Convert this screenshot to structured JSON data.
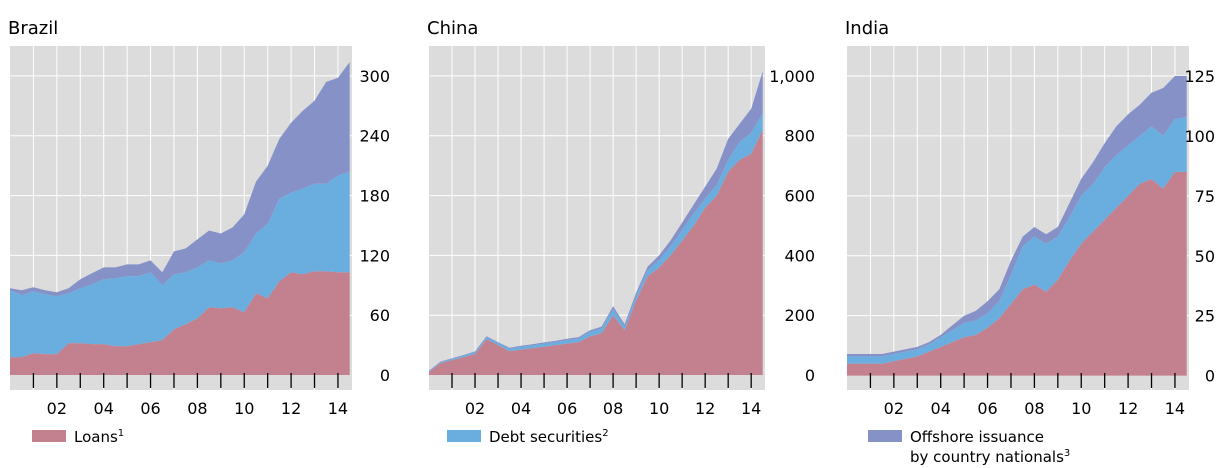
{
  "colors": {
    "panel_bg": "#dcdcdc",
    "grid": "#ffffff",
    "loans": "#c3808e",
    "debt_securities": "#6aaee0",
    "offshore": "#8691c8"
  },
  "legend": {
    "loans": {
      "label": "Loans",
      "sup": "1"
    },
    "debt_securities": {
      "label": "Debt securities",
      "sup": "2"
    },
    "offshore": {
      "label_line1": "Offshore issuance",
      "label_line2": "by country nationals",
      "sup": "3"
    }
  },
  "chart_data": [
    {
      "type": "area",
      "stacked": true,
      "title": "Brazil",
      "xlim": [
        2000.0,
        2014.6
      ],
      "ylim": [
        -15,
        330
      ],
      "grid": true,
      "y_axis_side": "right",
      "x_ticks": [
        2002,
        2004,
        2006,
        2008,
        2010,
        2012,
        2014
      ],
      "x_tick_labels": [
        "02",
        "04",
        "06",
        "08",
        "10",
        "12",
        "14"
      ],
      "y_ticks": [
        0,
        60,
        120,
        180,
        240,
        300
      ],
      "y_tick_labels": [
        "0",
        "60",
        "120",
        "180",
        "240",
        "300"
      ],
      "x": [
        2000.0,
        2000.5,
        2001.0,
        2001.5,
        2002.0,
        2002.5,
        2003.0,
        2003.5,
        2004.0,
        2004.5,
        2005.0,
        2005.5,
        2006.0,
        2006.5,
        2007.0,
        2007.5,
        2008.0,
        2008.5,
        2009.0,
        2009.5,
        2010.0,
        2010.5,
        2011.0,
        2011.5,
        2012.0,
        2012.5,
        2013.0,
        2013.5,
        2014.0,
        2014.5
      ],
      "series": [
        {
          "name": "Loans",
          "values": [
            18,
            18,
            22,
            21,
            21,
            32,
            32,
            31,
            31,
            29,
            29,
            31,
            33,
            35,
            46,
            51,
            57,
            68,
            67,
            68,
            63,
            82,
            77,
            94,
            103,
            101,
            104,
            104,
            103,
            103
          ]
        },
        {
          "name": "Debt securities",
          "values": [
            67,
            62,
            62,
            60,
            58,
            50,
            55,
            60,
            65,
            68,
            70,
            68,
            70,
            55,
            55,
            52,
            51,
            47,
            45,
            47,
            60,
            60,
            75,
            83,
            80,
            86,
            88,
            88,
            97,
            101
          ]
        },
        {
          "name": "Offshore issuance by country nationals",
          "values": [
            2,
            5,
            4,
            4,
            4,
            5,
            9,
            11,
            12,
            11,
            12,
            12,
            12,
            13,
            23,
            24,
            28,
            30,
            30,
            33,
            38,
            52,
            58,
            60,
            70,
            78,
            83,
            102,
            98,
            110
          ]
        }
      ]
    },
    {
      "type": "area",
      "stacked": true,
      "title": "China",
      "xlim": [
        2000.0,
        2014.6
      ],
      "ylim": [
        -50,
        1100
      ],
      "grid": true,
      "y_axis_side": "right",
      "x_ticks": [
        2002,
        2004,
        2006,
        2008,
        2010,
        2012,
        2014
      ],
      "x_tick_labels": [
        "02",
        "04",
        "06",
        "08",
        "10",
        "12",
        "14"
      ],
      "y_ticks": [
        0,
        200,
        400,
        600,
        800,
        1000
      ],
      "y_tick_labels": [
        "0",
        "200",
        "400",
        "600",
        "800",
        "1,000"
      ],
      "x": [
        2000.0,
        2000.5,
        2001.0,
        2001.5,
        2002.0,
        2002.5,
        2003.0,
        2003.5,
        2004.0,
        2004.5,
        2005.0,
        2005.5,
        2006.0,
        2006.5,
        2007.0,
        2007.5,
        2008.0,
        2008.5,
        2009.0,
        2009.5,
        2010.0,
        2010.5,
        2011.0,
        2011.5,
        2012.0,
        2012.5,
        2013.0,
        2013.5,
        2014.0,
        2014.5
      ],
      "series": [
        {
          "name": "Loans",
          "values": [
            10,
            40,
            50,
            60,
            70,
            120,
            100,
            80,
            85,
            90,
            95,
            100,
            105,
            110,
            130,
            140,
            200,
            150,
            250,
            330,
            360,
            400,
            450,
            500,
            560,
            600,
            680,
            720,
            740,
            820
          ]
        },
        {
          "name": "Debt securities",
          "values": [
            3,
            3,
            4,
            5,
            6,
            7,
            7,
            8,
            9,
            9,
            10,
            10,
            11,
            12,
            15,
            16,
            20,
            12,
            15,
            20,
            25,
            30,
            35,
            40,
            30,
            35,
            40,
            60,
            70,
            55
          ]
        },
        {
          "name": "Offshore issuance by country nationals",
          "values": [
            2,
            2,
            2,
            2,
            3,
            3,
            3,
            3,
            4,
            4,
            4,
            4,
            5,
            5,
            5,
            6,
            10,
            8,
            10,
            12,
            15,
            20,
            25,
            30,
            40,
            55,
            70,
            60,
            80,
            140
          ]
        }
      ]
    },
    {
      "type": "area",
      "stacked": true,
      "title": "India",
      "xlim": [
        2000.0,
        2014.6
      ],
      "ylim": [
        -6,
        137.5
      ],
      "grid": true,
      "y_axis_side": "right",
      "x_ticks": [
        2002,
        2004,
        2006,
        2008,
        2010,
        2012,
        2014
      ],
      "x_tick_labels": [
        "02",
        "04",
        "06",
        "08",
        "10",
        "12",
        "14"
      ],
      "y_ticks": [
        0,
        25,
        50,
        75,
        100,
        125
      ],
      "y_tick_labels": [
        "0",
        "25",
        "50",
        "75",
        "100",
        "125"
      ],
      "x": [
        2000.0,
        2000.5,
        2001.0,
        2001.5,
        2002.0,
        2002.5,
        2003.0,
        2003.5,
        2004.0,
        2004.5,
        2005.0,
        2005.5,
        2006.0,
        2006.5,
        2007.0,
        2007.5,
        2008.0,
        2008.5,
        2009.0,
        2009.5,
        2010.0,
        2010.5,
        2011.0,
        2011.5,
        2012.0,
        2012.5,
        2013.0,
        2013.5,
        2014.0,
        2014.5
      ],
      "series": [
        {
          "name": "Loans",
          "values": [
            5,
            5,
            5,
            5,
            6,
            7,
            8,
            10,
            12,
            14,
            16,
            17,
            20,
            24,
            30,
            36,
            38,
            35,
            40,
            48,
            55,
            60,
            65,
            70,
            75,
            80,
            82,
            78,
            85,
            85
          ]
        },
        {
          "name": "Debt securities",
          "values": [
            3,
            3,
            3,
            3,
            3,
            3,
            3,
            3,
            4,
            5,
            6,
            6,
            6,
            7,
            12,
            18,
            20,
            20,
            18,
            18,
            20,
            20,
            22,
            22,
            21,
            20,
            22,
            22,
            22,
            23
          ]
        },
        {
          "name": "Offshore issuance by country nationals",
          "values": [
            1,
            1,
            1,
            1,
            1,
            1,
            1,
            1,
            1,
            2,
            3,
            4,
            5,
            5,
            6,
            4,
            4,
            4,
            4,
            6,
            7,
            9,
            10,
            12,
            13,
            13,
            14,
            20,
            18,
            17
          ]
        }
      ]
    }
  ]
}
